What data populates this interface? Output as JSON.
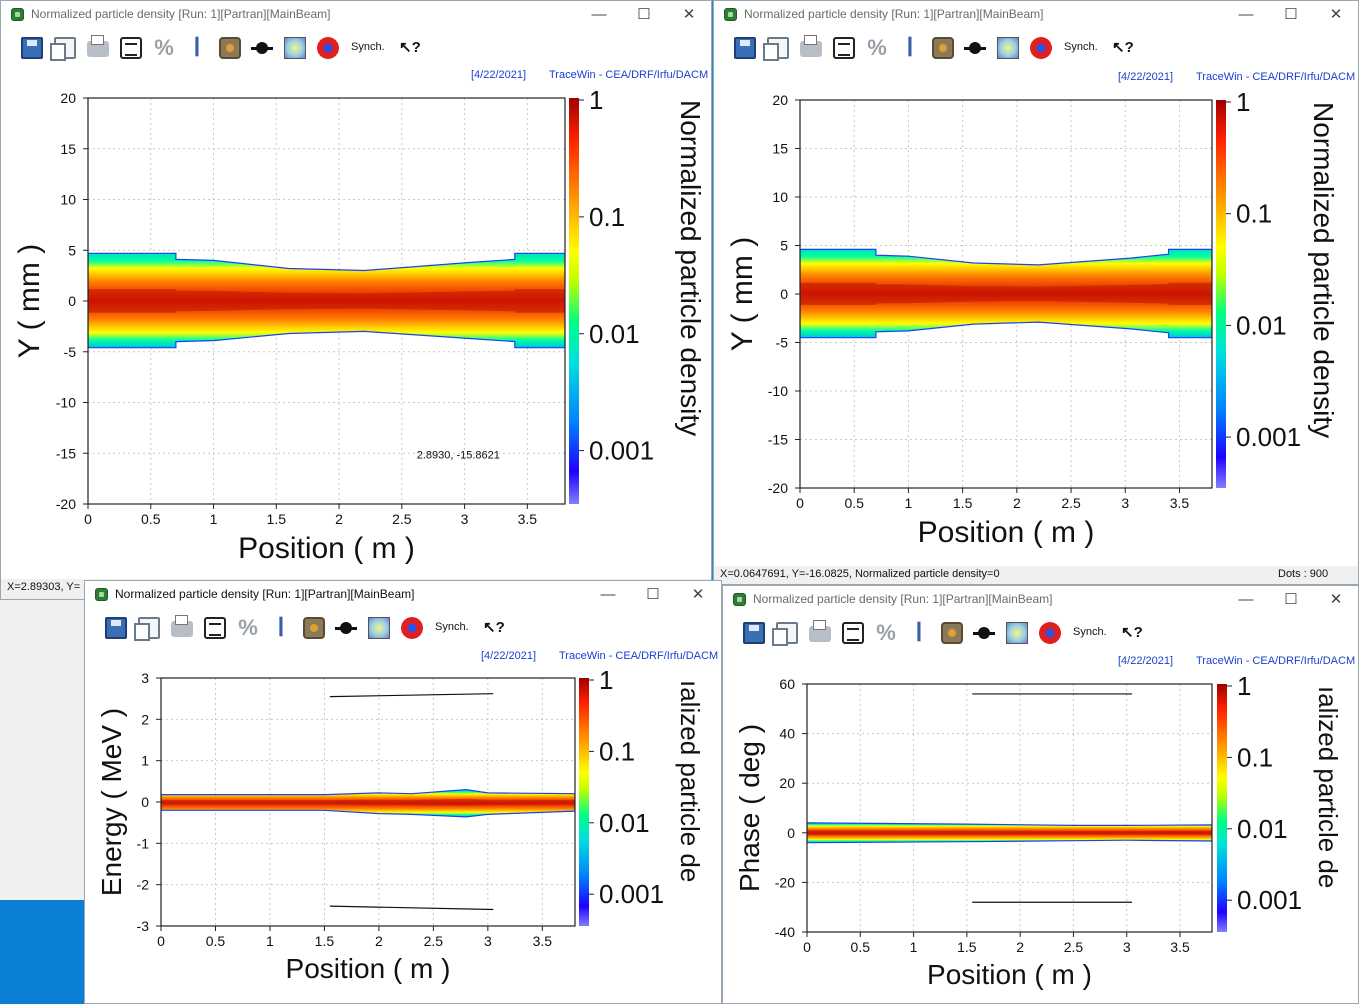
{
  "windows": [
    {
      "id": "w1",
      "title": "Normalized particle density [Run: 1][Partran][MainBeam]",
      "title_active": true,
      "date": "[4/22/2021]",
      "credit": "TraceWin - CEA/DRF/Irfu/DACM",
      "synch_label": "Synch.",
      "status_left": "X=2.89303, Y=",
      "status_right": ""
    },
    {
      "id": "w2",
      "title": "Normalized particle density [Run: 1][Partran][MainBeam]",
      "title_active": false,
      "date": "[4/22/2021]",
      "credit": "TraceWin - CEA/DRF/Irfu/DACM",
      "synch_label": "Synch.",
      "status_left": "X=0.0647691, Y=-16.0825, Normalized particle density=0",
      "status_right": "Dots : 900"
    },
    {
      "id": "w3",
      "title": "Normalized particle density [Run: 1][Partran][MainBeam]",
      "title_active": true,
      "date": "[4/22/2021]",
      "credit": "TraceWin - CEA/DRF/Irfu/DACM",
      "synch_label": "Synch.",
      "status_left": "",
      "status_right": ""
    },
    {
      "id": "w4",
      "title": "Normalized particle density [Run: 1][Partran][MainBeam]",
      "title_active": false,
      "date": "[4/22/2021]",
      "credit": "TraceWin - CEA/DRF/Irfu/DACM",
      "synch_label": "Synch.",
      "status_left": "",
      "status_right": ""
    }
  ],
  "window_buttons": {
    "minimize": "—",
    "maximize": "☐",
    "close": "✕"
  },
  "toolbar_icons": [
    "save-icon",
    "copy-icon",
    "print-icon",
    "text-report-icon",
    "percent-icon",
    "scale-icon",
    "settings-icon",
    "element-icon",
    "density-icon",
    "target-icon",
    "synch-label",
    "help-cursor-icon"
  ],
  "colors": {
    "accent_text": "#1a3fd0",
    "density_low": "#3000ff",
    "density_mid": "#00ff80",
    "density_high": "#8b0000"
  },
  "chart_data": [
    {
      "type": "heatmap",
      "window": "w1",
      "xlabel": "Position ( m )",
      "ylabel": "Y ( mm )",
      "colorbar_label": "Normalized particle density",
      "xlim": [
        0,
        3.8
      ],
      "ylim": [
        -20,
        20
      ],
      "xticks": [
        "0",
        "0.5",
        "1",
        "1.5",
        "2",
        "2.5",
        "3",
        "3.5"
      ],
      "yticks": [
        "20",
        "15",
        "10",
        "5",
        "0",
        "-5",
        "-10",
        "-15",
        "-20"
      ],
      "colorbar_ticks": [
        "1",
        "0.1",
        "0.01",
        "0.001"
      ],
      "colorbar_scale": "log",
      "grid": true,
      "cursor_readout": "2.8930, -15.8621",
      "envelope": {
        "x": [
          0,
          0.7,
          0.7,
          1.0,
          1.6,
          2.2,
          3.05,
          3.4,
          3.4,
          3.8
        ],
        "upper": [
          4.7,
          4.7,
          4.1,
          4.0,
          3.2,
          3.0,
          3.8,
          4.1,
          4.7,
          4.7
        ],
        "lower": [
          -4.6,
          -4.6,
          -4.0,
          -3.9,
          -3.2,
          -3.0,
          -3.7,
          -4.0,
          -4.6,
          -4.6
        ]
      }
    },
    {
      "type": "heatmap",
      "window": "w2",
      "xlabel": "Position ( m )",
      "ylabel": "Y ( mm )",
      "colorbar_label": "Normalized particle density",
      "xlim": [
        0,
        3.8
      ],
      "ylim": [
        -20,
        20
      ],
      "xticks": [
        "0",
        "0.5",
        "1",
        "1.5",
        "2",
        "2.5",
        "3",
        "3.5"
      ],
      "yticks": [
        "20",
        "15",
        "10",
        "5",
        "0",
        "-5",
        "-10",
        "-15",
        "-20"
      ],
      "colorbar_ticks": [
        "1",
        "0.1",
        "0.01",
        "0.001"
      ],
      "colorbar_scale": "log",
      "grid": true,
      "envelope": {
        "x": [
          0,
          0.7,
          0.7,
          1.0,
          1.6,
          2.2,
          3.05,
          3.4,
          3.4,
          3.8
        ],
        "upper": [
          4.6,
          4.6,
          4.0,
          3.9,
          3.2,
          3.0,
          3.7,
          4.1,
          4.6,
          4.6
        ],
        "lower": [
          -4.5,
          -4.5,
          -3.9,
          -3.8,
          -3.1,
          -2.9,
          -3.6,
          -4.0,
          -4.5,
          -4.5
        ]
      }
    },
    {
      "type": "heatmap",
      "window": "w3",
      "xlabel": "Position ( m )",
      "ylabel": "Energy ( MeV )",
      "colorbar_label": "ıalized particle de",
      "xlim": [
        0,
        3.8
      ],
      "ylim": [
        -3,
        3
      ],
      "xticks": [
        "0",
        "0.5",
        "1",
        "1.5",
        "2",
        "2.5",
        "3",
        "3.5"
      ],
      "yticks": [
        "3",
        "2",
        "1",
        "0",
        "-1",
        "-2",
        "-3"
      ],
      "colorbar_ticks": [
        "1",
        "0.1",
        "0.01",
        "0.001"
      ],
      "colorbar_scale": "log",
      "grid": true,
      "envelope": {
        "x": [
          0,
          1.5,
          2.0,
          2.3,
          2.8,
          3.0,
          3.8
        ],
        "upper": [
          0.18,
          0.18,
          0.22,
          0.2,
          0.3,
          0.22,
          0.2
        ],
        "lower": [
          -0.2,
          -0.2,
          -0.28,
          -0.3,
          -0.36,
          -0.3,
          -0.22
        ]
      },
      "aperture_lines": [
        {
          "x": [
            1.55,
            3.05
          ],
          "y": [
            2.55,
            2.62
          ]
        },
        {
          "x": [
            1.55,
            3.05
          ],
          "y": [
            -2.52,
            -2.6
          ]
        }
      ]
    },
    {
      "type": "heatmap",
      "window": "w4",
      "xlabel": "Position ( m )",
      "ylabel": "Phase ( deg )",
      "colorbar_label": "ıalized particle de",
      "xlim": [
        0,
        3.8
      ],
      "ylim": [
        -40,
        60
      ],
      "xticks": [
        "0",
        "0.5",
        "1",
        "1.5",
        "2",
        "2.5",
        "3",
        "3.5"
      ],
      "yticks": [
        "60",
        "40",
        "20",
        "0",
        "-20",
        "-40"
      ],
      "colorbar_ticks": [
        "1",
        "0.1",
        "0.01",
        "0.001"
      ],
      "colorbar_scale": "log",
      "grid": true,
      "envelope": {
        "x": [
          0,
          1.5,
          2.5,
          3.0,
          3.8
        ],
        "upper": [
          4.0,
          3.5,
          3.0,
          3.0,
          3.2
        ],
        "lower": [
          -4.0,
          -3.6,
          -3.2,
          -3.0,
          -3.3
        ]
      },
      "aperture_lines": [
        {
          "x": [
            1.55,
            3.05
          ],
          "y": [
            56,
            56
          ]
        },
        {
          "x": [
            1.55,
            3.05
          ],
          "y": [
            -28,
            -28
          ]
        }
      ]
    }
  ]
}
